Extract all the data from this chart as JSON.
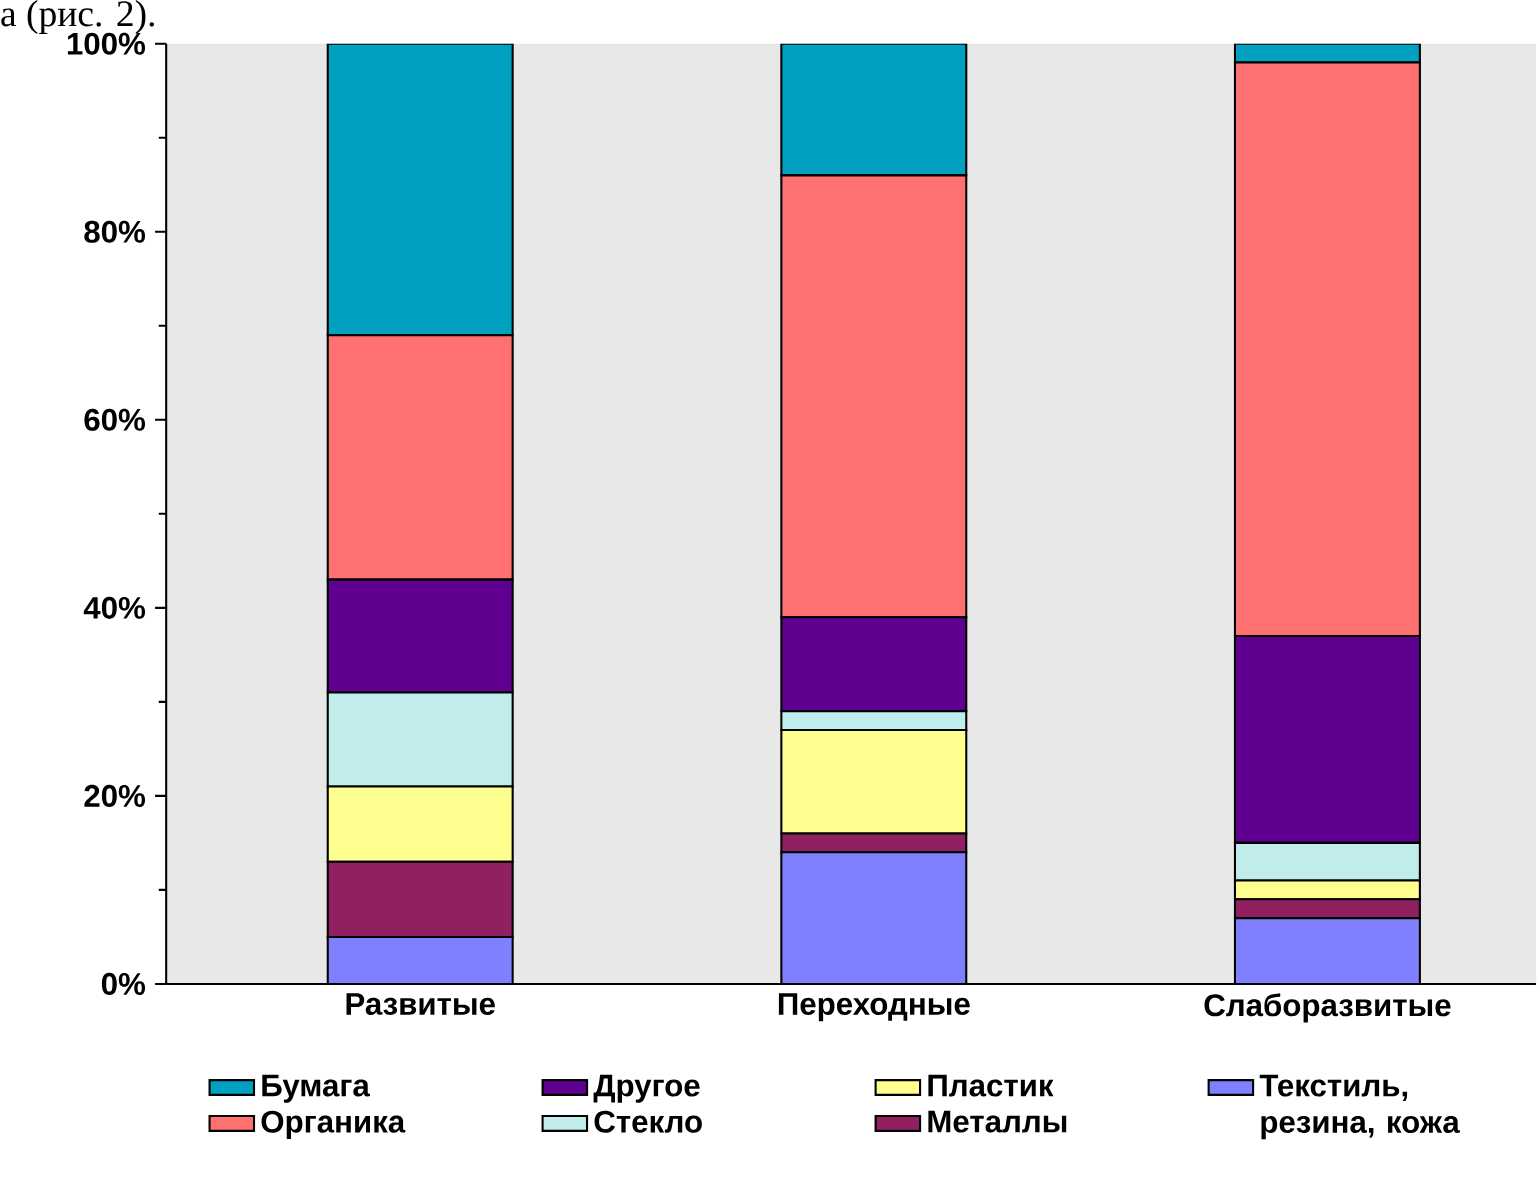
{
  "chart_data": {
    "type": "bar",
    "stacked": true,
    "annotations": [
      "а (рис. 2)."
    ],
    "categories": [
      "Развитые",
      "Переходные",
      "Слаборазвитые"
    ],
    "ylim": [
      0,
      100
    ],
    "yticks": [
      {
        "value": 0,
        "label": "0%"
      },
      {
        "value": 20,
        "label": "20%"
      },
      {
        "value": 40,
        "label": "40%"
      },
      {
        "value": 60,
        "label": "60%"
      },
      {
        "value": 80,
        "label": "80%"
      },
      {
        "value": 100,
        "label": "100%"
      }
    ],
    "grid": false,
    "legend": "bottom",
    "series": [
      {
        "name": "Текстиль, резина, кожа",
        "color": "#8080ff",
        "values": [
          5,
          14,
          7
        ]
      },
      {
        "name": "Металлы",
        "color": "#902060",
        "values": [
          8,
          2,
          2
        ]
      },
      {
        "name": "Пластик",
        "color": "#ffff90",
        "values": [
          8,
          11,
          2
        ]
      },
      {
        "name": "Стекло",
        "color": "#c0ecec",
        "values": [
          10,
          2,
          4
        ]
      },
      {
        "name": "Другое",
        "color": "#600090",
        "values": [
          12,
          10,
          22
        ]
      },
      {
        "name": "Органика",
        "color": "#ff7070",
        "values": [
          26,
          47,
          61
        ]
      },
      {
        "name": "Бумага",
        "color": "#00a0c0",
        "values": [
          31,
          14,
          2
        ]
      }
    ]
  }
}
